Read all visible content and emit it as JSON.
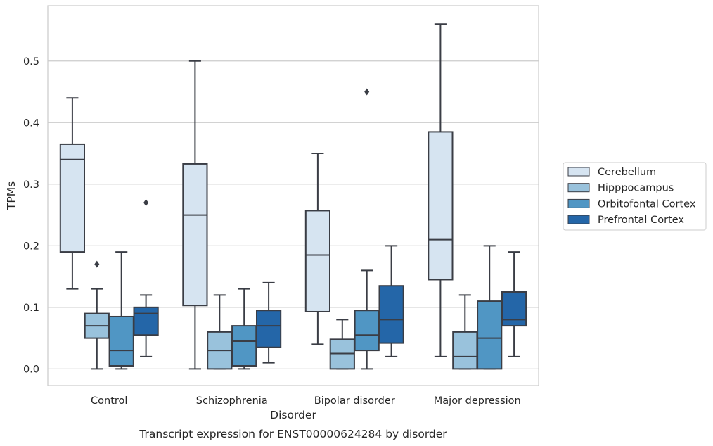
{
  "chart_data": {
    "type": "box",
    "caption": "Transcript expression for ENST00000624284 by disorder",
    "xlabel": "Disorder",
    "ylabel": "TPMs",
    "ylim": [
      -0.027,
      0.59
    ],
    "yticks": [
      "0.0",
      "0.1",
      "0.2",
      "0.3",
      "0.4",
      "0.5"
    ],
    "grid": "horizontal",
    "legend_position": "right",
    "categories": [
      "Control",
      "Schizophrenia",
      "Bipolar disorder",
      "Major depression"
    ],
    "series": [
      {
        "name": "Cerebellum",
        "color": "#d6e4f1",
        "boxes": [
          {
            "whisker_low": 0.13,
            "q1": 0.19,
            "median": 0.34,
            "q3": 0.365,
            "whisker_high": 0.44,
            "outliers": []
          },
          {
            "whisker_low": 0.0,
            "q1": 0.103,
            "median": 0.25,
            "q3": 0.333,
            "whisker_high": 0.5,
            "outliers": []
          },
          {
            "whisker_low": 0.04,
            "q1": 0.093,
            "median": 0.185,
            "q3": 0.257,
            "whisker_high": 0.35,
            "outliers": []
          },
          {
            "whisker_low": 0.02,
            "q1": 0.145,
            "median": 0.21,
            "q3": 0.385,
            "whisker_high": 0.56,
            "outliers": []
          }
        ]
      },
      {
        "name": "Hipppocampus",
        "color": "#99c2dc",
        "boxes": [
          {
            "whisker_low": 0.0,
            "q1": 0.05,
            "median": 0.07,
            "q3": 0.09,
            "whisker_high": 0.13,
            "outliers": [
              0.17
            ]
          },
          {
            "whisker_low": 0.0,
            "q1": 0.0,
            "median": 0.03,
            "q3": 0.06,
            "whisker_high": 0.12,
            "outliers": []
          },
          {
            "whisker_low": 0.0,
            "q1": 0.0,
            "median": 0.025,
            "q3": 0.048,
            "whisker_high": 0.08,
            "outliers": []
          },
          {
            "whisker_low": 0.0,
            "q1": 0.0,
            "median": 0.02,
            "q3": 0.06,
            "whisker_high": 0.12,
            "outliers": []
          }
        ]
      },
      {
        "name": "Orbitofontal Cortex",
        "color": "#5096c4",
        "boxes": [
          {
            "whisker_low": 0.0,
            "q1": 0.005,
            "median": 0.03,
            "q3": 0.085,
            "whisker_high": 0.19,
            "outliers": []
          },
          {
            "whisker_low": 0.0,
            "q1": 0.005,
            "median": 0.045,
            "q3": 0.07,
            "whisker_high": 0.13,
            "outliers": []
          },
          {
            "whisker_low": 0.0,
            "q1": 0.03,
            "median": 0.055,
            "q3": 0.095,
            "whisker_high": 0.16,
            "outliers": [
              0.45
            ]
          },
          {
            "whisker_low": 0.0,
            "q1": 0.0,
            "median": 0.05,
            "q3": 0.11,
            "whisker_high": 0.2,
            "outliers": []
          }
        ]
      },
      {
        "name": "Prefrontal Cortex",
        "color": "#2466a8",
        "boxes": [
          {
            "whisker_low": 0.02,
            "q1": 0.055,
            "median": 0.09,
            "q3": 0.1,
            "whisker_high": 0.12,
            "outliers": [
              0.27
            ]
          },
          {
            "whisker_low": 0.01,
            "q1": 0.035,
            "median": 0.07,
            "q3": 0.095,
            "whisker_high": 0.14,
            "outliers": []
          },
          {
            "whisker_low": 0.02,
            "q1": 0.042,
            "median": 0.08,
            "q3": 0.135,
            "whisker_high": 0.2,
            "outliers": []
          },
          {
            "whisker_low": 0.02,
            "q1": 0.07,
            "median": 0.08,
            "q3": 0.125,
            "whisker_high": 0.19,
            "outliers": []
          }
        ]
      }
    ]
  }
}
